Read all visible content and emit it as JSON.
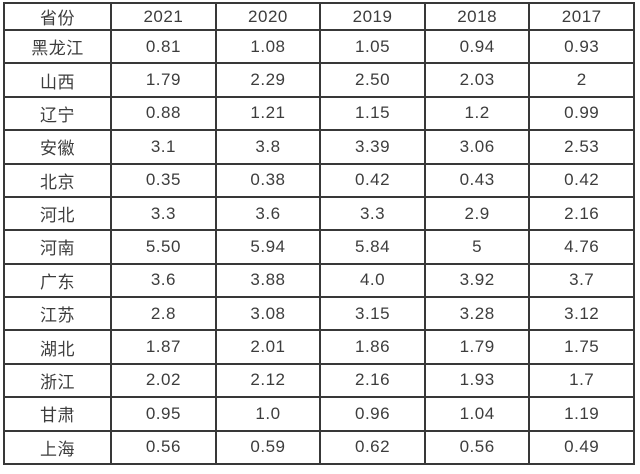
{
  "chart_data": {
    "type": "table",
    "title": "",
    "header": [
      "省份",
      "2021",
      "2020",
      "2019",
      "2018",
      "2017"
    ],
    "rows": [
      [
        "黑龙江",
        "0.81",
        "1.08",
        "1.05",
        "0.94",
        "0.93"
      ],
      [
        "山西",
        "1.79",
        "2.29",
        "2.50",
        "2.03",
        "2"
      ],
      [
        "辽宁",
        "0.88",
        "1.21",
        "1.15",
        "1.2",
        "0.99"
      ],
      [
        "安徽",
        "3.1",
        "3.8",
        "3.39",
        "3.06",
        "2.53"
      ],
      [
        "北京",
        "0.35",
        "0.38",
        "0.42",
        "0.43",
        "0.42"
      ],
      [
        "河北",
        "3.3",
        "3.6",
        "3.3",
        "2.9",
        "2.16"
      ],
      [
        "河南",
        "5.50",
        "5.94",
        "5.84",
        "5",
        "4.76"
      ],
      [
        "广东",
        "3.6",
        "3.88",
        "4.0",
        "3.92",
        "3.7"
      ],
      [
        "江苏",
        "2.8",
        "3.08",
        "3.15",
        "3.28",
        "3.12"
      ],
      [
        "湖北",
        "1.87",
        "2.01",
        "1.86",
        "1.79",
        "1.75"
      ],
      [
        "浙江",
        "2.02",
        "2.12",
        "2.16",
        "1.93",
        "1.7"
      ],
      [
        "甘肃",
        "0.95",
        "1.0",
        "0.96",
        "1.04",
        "1.19"
      ],
      [
        "上海",
        "0.56",
        "0.59",
        "0.62",
        "0.56",
        "0.49"
      ]
    ]
  },
  "colors": {
    "border": "#383838",
    "text": "#3d3d3d",
    "background": "#ffffff"
  }
}
